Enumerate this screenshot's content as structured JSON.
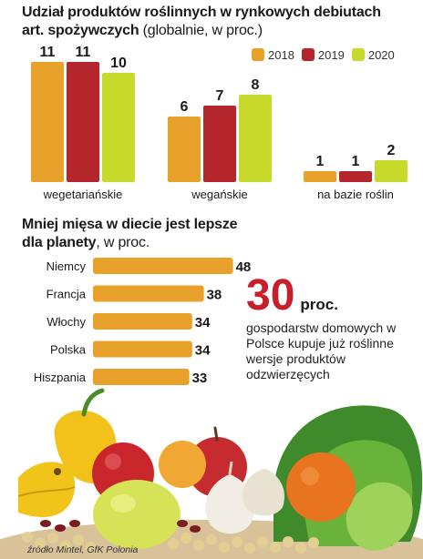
{
  "colors": {
    "y2018": "#e8a12a",
    "y2019": "#b5262c",
    "y2020": "#c7d92b",
    "bar2": "#e8a12a",
    "accent": "#c8202a"
  },
  "title1": {
    "bold": "Udział produktów roślinnych w rynkowych debiutach art. spożywczych",
    "normal": " (globalnie, w proc.)"
  },
  "title2": {
    "bold": "Mniej mięsa w diecie jest lepsze dla planety",
    "normal": ", w proc."
  },
  "callout": {
    "number": "30",
    "unit": "proc.",
    "text": "gospodarstw domowych w Polsce kupuje już roślinne wersje produktów odzwierzęcych"
  },
  "source": "źródło Mintel, GfK Polonia",
  "chart_data": [
    {
      "type": "bar",
      "categories": [
        "wegetariańskie",
        "wegańskie",
        "na bazie roślin"
      ],
      "series": [
        {
          "name": "2018",
          "values": [
            11,
            6,
            1
          ]
        },
        {
          "name": "2019",
          "values": [
            11,
            7,
            1
          ]
        },
        {
          "name": "2020",
          "values": [
            10,
            8,
            2
          ]
        }
      ],
      "title": "Udział produktów roślinnych w rynkowych debiutach art. spożywczych (globalnie, w proc.)",
      "legend": "top-right",
      "grid": false
    },
    {
      "type": "bar",
      "orientation": "horizontal",
      "categories": [
        "Niemcy",
        "Francja",
        "Włochy",
        "Polska",
        "Hiszpania"
      ],
      "values": [
        48,
        38,
        34,
        34,
        33
      ],
      "title": "Mniej mięsa w diecie jest lepsze dla planety, w proc.",
      "grid": false
    }
  ]
}
